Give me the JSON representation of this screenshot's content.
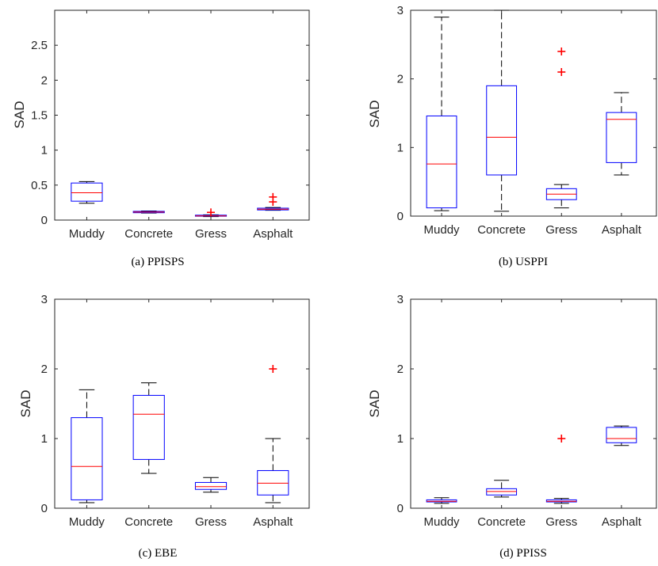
{
  "chart_data": [
    {
      "type": "boxplot",
      "caption": "(a) PPISPS",
      "ylabel": "SAD",
      "categories": [
        "Muddy",
        "Concrete",
        "Gress",
        "Asphalt"
      ],
      "ylim": [
        0,
        3
      ],
      "yticks": [
        0,
        0.5,
        1,
        1.5,
        2,
        2.5
      ],
      "ytick_labels": [
        "0",
        "0.5",
        "1",
        "1.5",
        "2",
        "2.5"
      ],
      "boxes": [
        {
          "whisker_low": 0.24,
          "q1": 0.27,
          "median": 0.39,
          "q3": 0.53,
          "whisker_high": 0.55,
          "outliers": []
        },
        {
          "whisker_low": 0.1,
          "q1": 0.105,
          "median": 0.115,
          "q3": 0.125,
          "whisker_high": 0.13,
          "outliers": []
        },
        {
          "whisker_low": 0.05,
          "q1": 0.055,
          "median": 0.06,
          "q3": 0.07,
          "whisker_high": 0.075,
          "outliers": [
            0.11
          ]
        },
        {
          "whisker_low": 0.14,
          "q1": 0.145,
          "median": 0.155,
          "q3": 0.17,
          "whisker_high": 0.18,
          "outliers": [
            0.26,
            0.33
          ]
        }
      ]
    },
    {
      "type": "boxplot",
      "caption": "(b) USPPI",
      "ylabel": "SAD",
      "categories": [
        "Muddy",
        "Concrete",
        "Gress",
        "Asphalt"
      ],
      "ylim": [
        0,
        3
      ],
      "yticks": [
        0,
        1,
        2,
        3
      ],
      "ytick_labels": [
        "0",
        "1",
        "2",
        "3"
      ],
      "boxes": [
        {
          "whisker_low": 0.08,
          "q1": 0.12,
          "median": 0.76,
          "q3": 1.46,
          "whisker_high": 2.9,
          "outliers": []
        },
        {
          "whisker_low": 0.07,
          "q1": 0.6,
          "median": 1.15,
          "q3": 1.9,
          "whisker_high": 3.0,
          "outliers": []
        },
        {
          "whisker_low": 0.12,
          "q1": 0.24,
          "median": 0.32,
          "q3": 0.4,
          "whisker_high": 0.46,
          "outliers": [
            2.1,
            2.4
          ]
        },
        {
          "whisker_low": 0.6,
          "q1": 0.78,
          "median": 1.41,
          "q3": 1.51,
          "whisker_high": 1.8,
          "outliers": []
        }
      ]
    },
    {
      "type": "boxplot",
      "caption": "(c) EBE",
      "ylabel": "SAD",
      "categories": [
        "Muddy",
        "Concrete",
        "Gress",
        "Asphalt"
      ],
      "ylim": [
        0,
        3
      ],
      "yticks": [
        0,
        1,
        2,
        3
      ],
      "ytick_labels": [
        "0",
        "1",
        "2",
        "3"
      ],
      "boxes": [
        {
          "whisker_low": 0.08,
          "q1": 0.12,
          "median": 0.6,
          "q3": 1.3,
          "whisker_high": 1.7,
          "outliers": []
        },
        {
          "whisker_low": 0.5,
          "q1": 0.7,
          "median": 1.35,
          "q3": 1.62,
          "whisker_high": 1.8,
          "outliers": []
        },
        {
          "whisker_low": 0.23,
          "q1": 0.27,
          "median": 0.31,
          "q3": 0.37,
          "whisker_high": 0.44,
          "outliers": []
        },
        {
          "whisker_low": 0.08,
          "q1": 0.19,
          "median": 0.36,
          "q3": 0.54,
          "whisker_high": 1.0,
          "outliers": [
            2.0
          ]
        }
      ]
    },
    {
      "type": "boxplot",
      "caption": "(d) PPISS",
      "ylabel": "SAD",
      "categories": [
        "Muddy",
        "Concrete",
        "Gress",
        "Asphalt"
      ],
      "ylim": [
        0,
        3
      ],
      "yticks": [
        0,
        1,
        2,
        3
      ],
      "ytick_labels": [
        "0",
        "1",
        "2",
        "3"
      ],
      "boxes": [
        {
          "whisker_low": 0.07,
          "q1": 0.09,
          "median": 0.1,
          "q3": 0.12,
          "whisker_high": 0.15,
          "outliers": []
        },
        {
          "whisker_low": 0.16,
          "q1": 0.19,
          "median": 0.24,
          "q3": 0.28,
          "whisker_high": 0.4,
          "outliers": []
        },
        {
          "whisker_low": 0.07,
          "q1": 0.09,
          "median": 0.1,
          "q3": 0.12,
          "whisker_high": 0.14,
          "outliers": [
            1.0
          ]
        },
        {
          "whisker_low": 0.9,
          "q1": 0.94,
          "median": 1.0,
          "q3": 1.16,
          "whisker_high": 1.18,
          "outliers": []
        }
      ]
    }
  ],
  "colors": {
    "box": "#0000ff",
    "median": "#ff0000",
    "whisker": "#000000",
    "outlier": "#ff0000",
    "axis": "#262626"
  }
}
